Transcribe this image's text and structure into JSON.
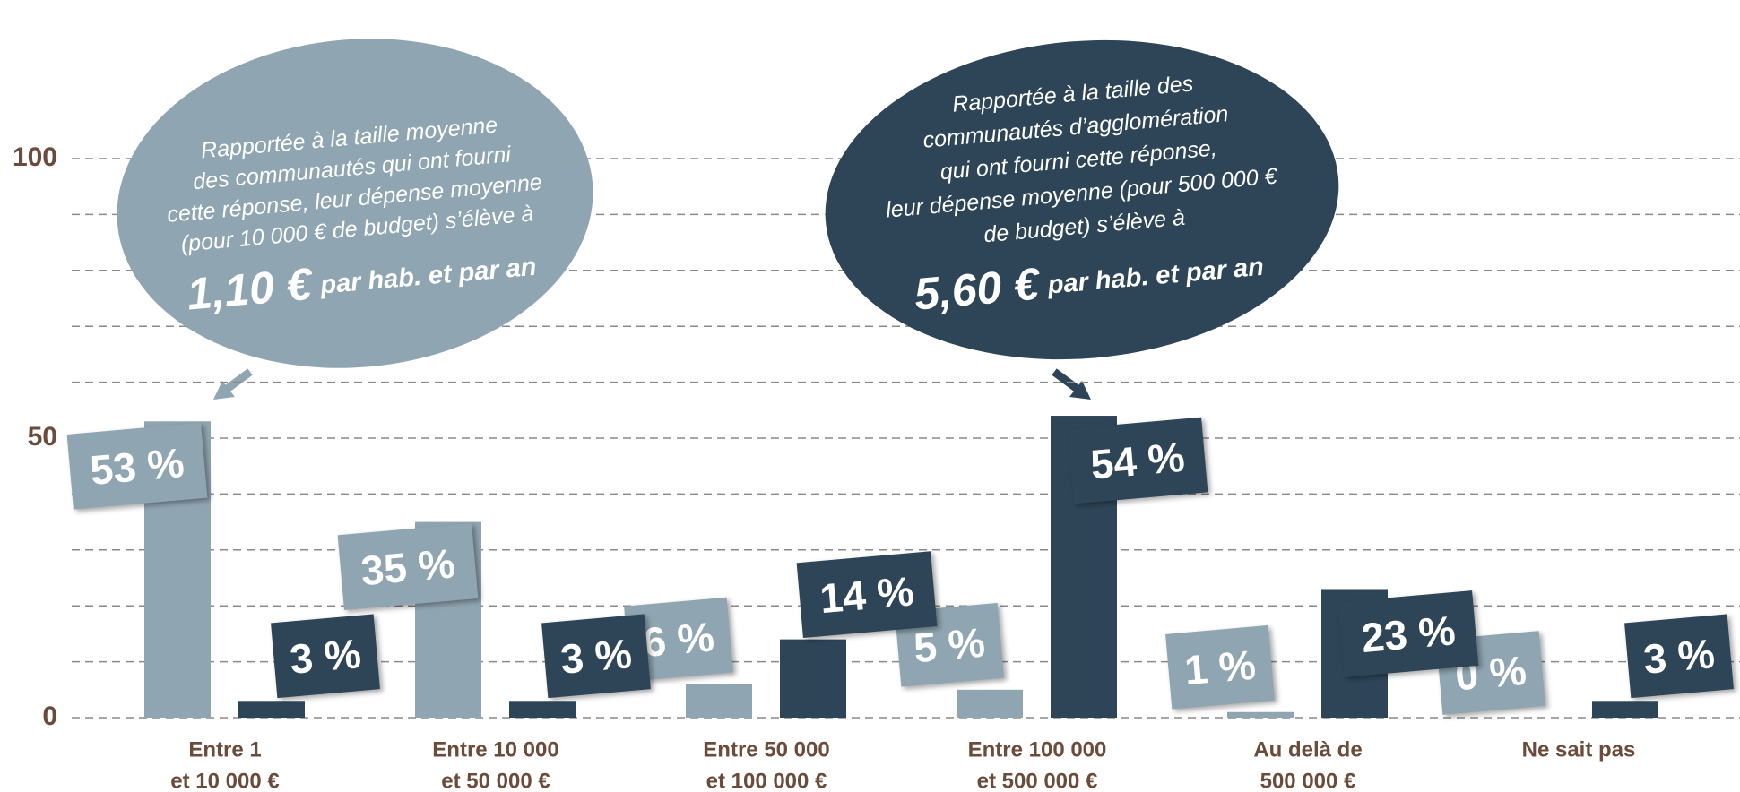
{
  "chart_data": {
    "type": "bar",
    "categories": [
      [
        "Entre 1",
        "et 10 000 €"
      ],
      [
        "Entre 10 000",
        "et 50 000 €"
      ],
      [
        "Entre 50 000",
        "et 100 000 €"
      ],
      [
        "Entre 100 000",
        "et 500 000 €"
      ],
      [
        "Au delà de",
        "500 000 €"
      ],
      [
        "Ne sait pas"
      ]
    ],
    "series": [
      {
        "color": "#8fa5b1",
        "values": [
          53,
          35,
          6,
          5,
          1,
          0
        ],
        "value_labels": [
          "53 %",
          "35 %",
          "6 %",
          "5 %",
          "1 %",
          "0 %"
        ]
      },
      {
        "color": "#2d4556",
        "values": [
          3,
          3,
          14,
          54,
          23,
          3
        ],
        "value_labels": [
          "3 %",
          "3 %",
          "14 %",
          "54 %",
          "23 %",
          "3 %"
        ]
      }
    ],
    "ylim": [
      0,
      100
    ],
    "yticks": [
      0,
      50,
      100
    ],
    "grid": true,
    "grid_ticks": [
      0,
      10,
      20,
      30,
      40,
      50,
      60,
      70,
      80,
      90,
      100
    ],
    "annotations": [
      {
        "lines": [
          "Rapportée à la taille moyenne",
          "des communautés qui ont fourni",
          "cette réponse, leur dépense moyenne",
          "(pour 10 000 € de budget) s’élève à"
        ],
        "value": "1,10 €",
        "unit": "par hab. et par an",
        "color": "#8fa5b1"
      },
      {
        "lines": [
          "Rapportée à la taille des",
          "communautés d’agglomération",
          "qui ont fourni cette réponse,",
          "leur dépense moyenne (pour 500 000 €",
          "de budget) s’élève à"
        ],
        "value": "5,60 €",
        "unit": "par hab. et par an",
        "color": "#2d4556"
      }
    ]
  }
}
